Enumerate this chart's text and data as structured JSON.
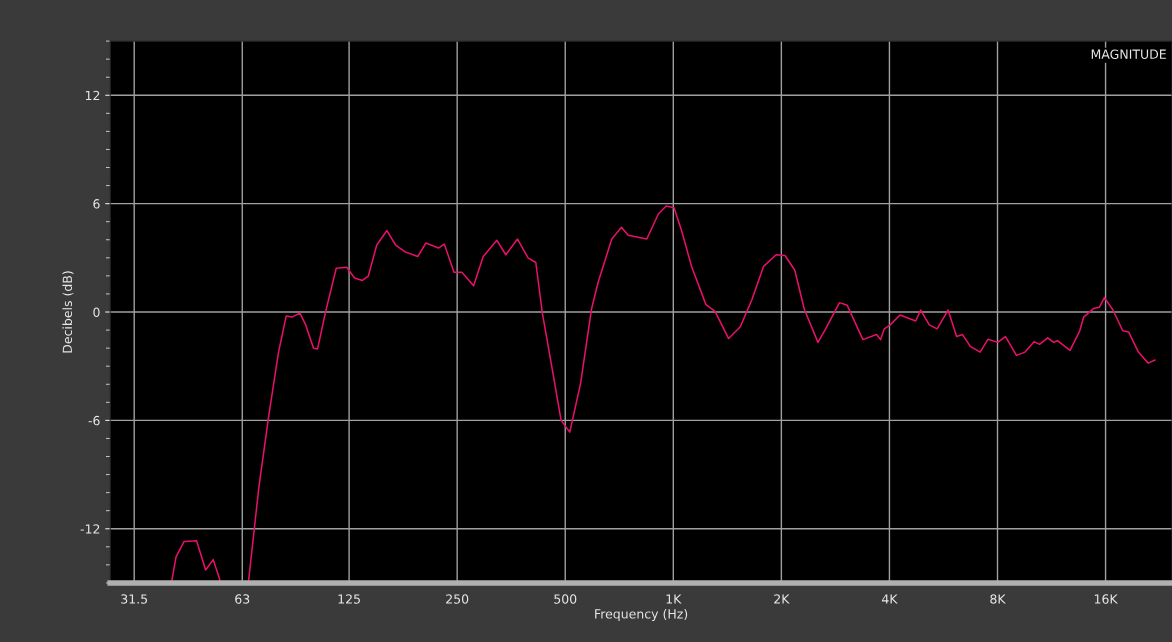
{
  "chart_data": {
    "type": "line",
    "xlabel": "Frequency (Hz)",
    "ylabel": "Decibels (dB)",
    "annotations": [
      "MAGNITUDE"
    ],
    "log": "x",
    "grid": true,
    "marker": "none",
    "line_style": "solid",
    "xlim": [
      27,
      24500
    ],
    "ylim": [
      -15,
      15
    ],
    "xticks": [
      31.5,
      63,
      125,
      250,
      500,
      {
        "value": 1000,
        "label": "1K"
      },
      {
        "value": 2000,
        "label": "2K"
      },
      {
        "value": 4000,
        "label": "4K"
      },
      {
        "value": 8000,
        "label": "8K"
      },
      {
        "value": 16000,
        "label": "16K"
      }
    ],
    "yticks": [
      {
        "value": -15,
        "label": null
      },
      {
        "value": -14,
        "label": null
      },
      {
        "value": -13,
        "label": null
      },
      -12,
      {
        "value": -11,
        "label": null
      },
      {
        "value": -10,
        "label": null
      },
      {
        "value": -9,
        "label": null
      },
      {
        "value": -8,
        "label": null
      },
      {
        "value": -7,
        "label": null
      },
      -6,
      {
        "value": -5,
        "label": null
      },
      {
        "value": -4,
        "label": null
      },
      {
        "value": -3,
        "label": null
      },
      {
        "value": -2,
        "label": null
      },
      {
        "value": -1,
        "label": null
      },
      0,
      {
        "value": 1,
        "label": null
      },
      {
        "value": 2,
        "label": null
      },
      {
        "value": 3,
        "label": null
      },
      {
        "value": 4,
        "label": null
      },
      {
        "value": 5,
        "label": null
      },
      6,
      {
        "value": 7,
        "label": null
      },
      {
        "value": 8,
        "label": null
      },
      {
        "value": 9,
        "label": null
      },
      {
        "value": 10,
        "label": null
      },
      {
        "value": 11,
        "label": null
      },
      12,
      {
        "value": 13,
        "label": null
      },
      {
        "value": 14,
        "label": null
      },
      {
        "value": 15,
        "label": null
      }
    ],
    "series": [
      {
        "color": "#e8106a",
        "x": [
          40.0,
          41.2,
          43.4,
          47.0,
          49.8,
          52.3,
          54.9,
          60,
          65.5,
          70.1,
          74.6,
          79.5,
          83.5,
          86.7,
          91.2,
          94.6,
          99.5,
          102.1,
          107.3,
          115.1,
          123.1,
          129.5,
          136.1,
          141.4,
          149.3,
          159.3,
          168.4,
          179.2,
          194.1,
          204.6,
          221.7,
          230.2,
          245.0,
          257.6,
          277.8,
          295.5,
          322.4,
          341.6,
          368.1,
          393.9,
          414.0,
          431.8,
          463.4,
          486.9,
          514.8,
          551.8,
          591.6,
          617.8,
          674.0,
          717.2,
          748.5,
          843.7,
          909.4,
          956,
          1005,
          1056,
          1124,
          1233,
          1307,
          1426,
          1537,
          1656,
          1785,
          1933,
          2048,
          2180,
          2317,
          2529,
          2657,
          2904,
          3052,
          3373,
          3684,
          3777,
          3871,
          4020,
          4280,
          4733,
          4888,
          5166,
          5431,
          5826,
          6156,
          6392,
          6721,
          7155,
          7522,
          8011,
          8422,
          9034,
          9547,
          10112,
          10476,
          11041,
          11464,
          11752,
          12737,
          13559,
          13902,
          14804,
          15372,
          15879,
          16781,
          17863,
          18548,
          19752,
          21027,
          21948
        ],
        "values": [
          -15.0,
          -13.56,
          -12.7,
          -12.66,
          -14.28,
          -13.71,
          -15.0,
          null,
          -15.0,
          -9.68,
          -5.79,
          -2.22,
          -0.22,
          -0.28,
          -0.06,
          -0.71,
          -2.01,
          -2.05,
          -0.06,
          2.42,
          2.48,
          1.88,
          1.75,
          1.99,
          3.71,
          4.51,
          3.71,
          3.33,
          3.07,
          3.82,
          3.54,
          3.76,
          2.2,
          2.2,
          1.45,
          3.07,
          3.97,
          3.17,
          4.04,
          3.0,
          2.74,
          -0.06,
          -3.52,
          -6.0,
          -6.65,
          -3.95,
          0.15,
          1.66,
          4.04,
          4.69,
          4.25,
          4.04,
          5.44,
          5.87,
          5.77,
          4.47,
          2.53,
          0.41,
          0.04,
          -1.47,
          -0.82,
          0.69,
          2.53,
          3.17,
          3.13,
          2.31,
          0.15,
          -1.68,
          -0.93,
          0.52,
          0.37,
          -1.53,
          -1.25,
          -1.53,
          -0.93,
          -0.71,
          -0.17,
          -0.5,
          0.11,
          -0.71,
          -0.93,
          0.11,
          -1.36,
          -1.25,
          -1.9,
          -2.22,
          -1.51,
          -1.68,
          -1.36,
          -2.4,
          -2.22,
          -1.64,
          -1.79,
          -1.43,
          -1.68,
          -1.58,
          -2.12,
          -1.04,
          -0.28,
          0.19,
          0.26,
          0.8,
          0.11,
          -1.04,
          -1.1,
          -2.22,
          -2.83,
          -2.66
        ]
      }
    ]
  }
}
